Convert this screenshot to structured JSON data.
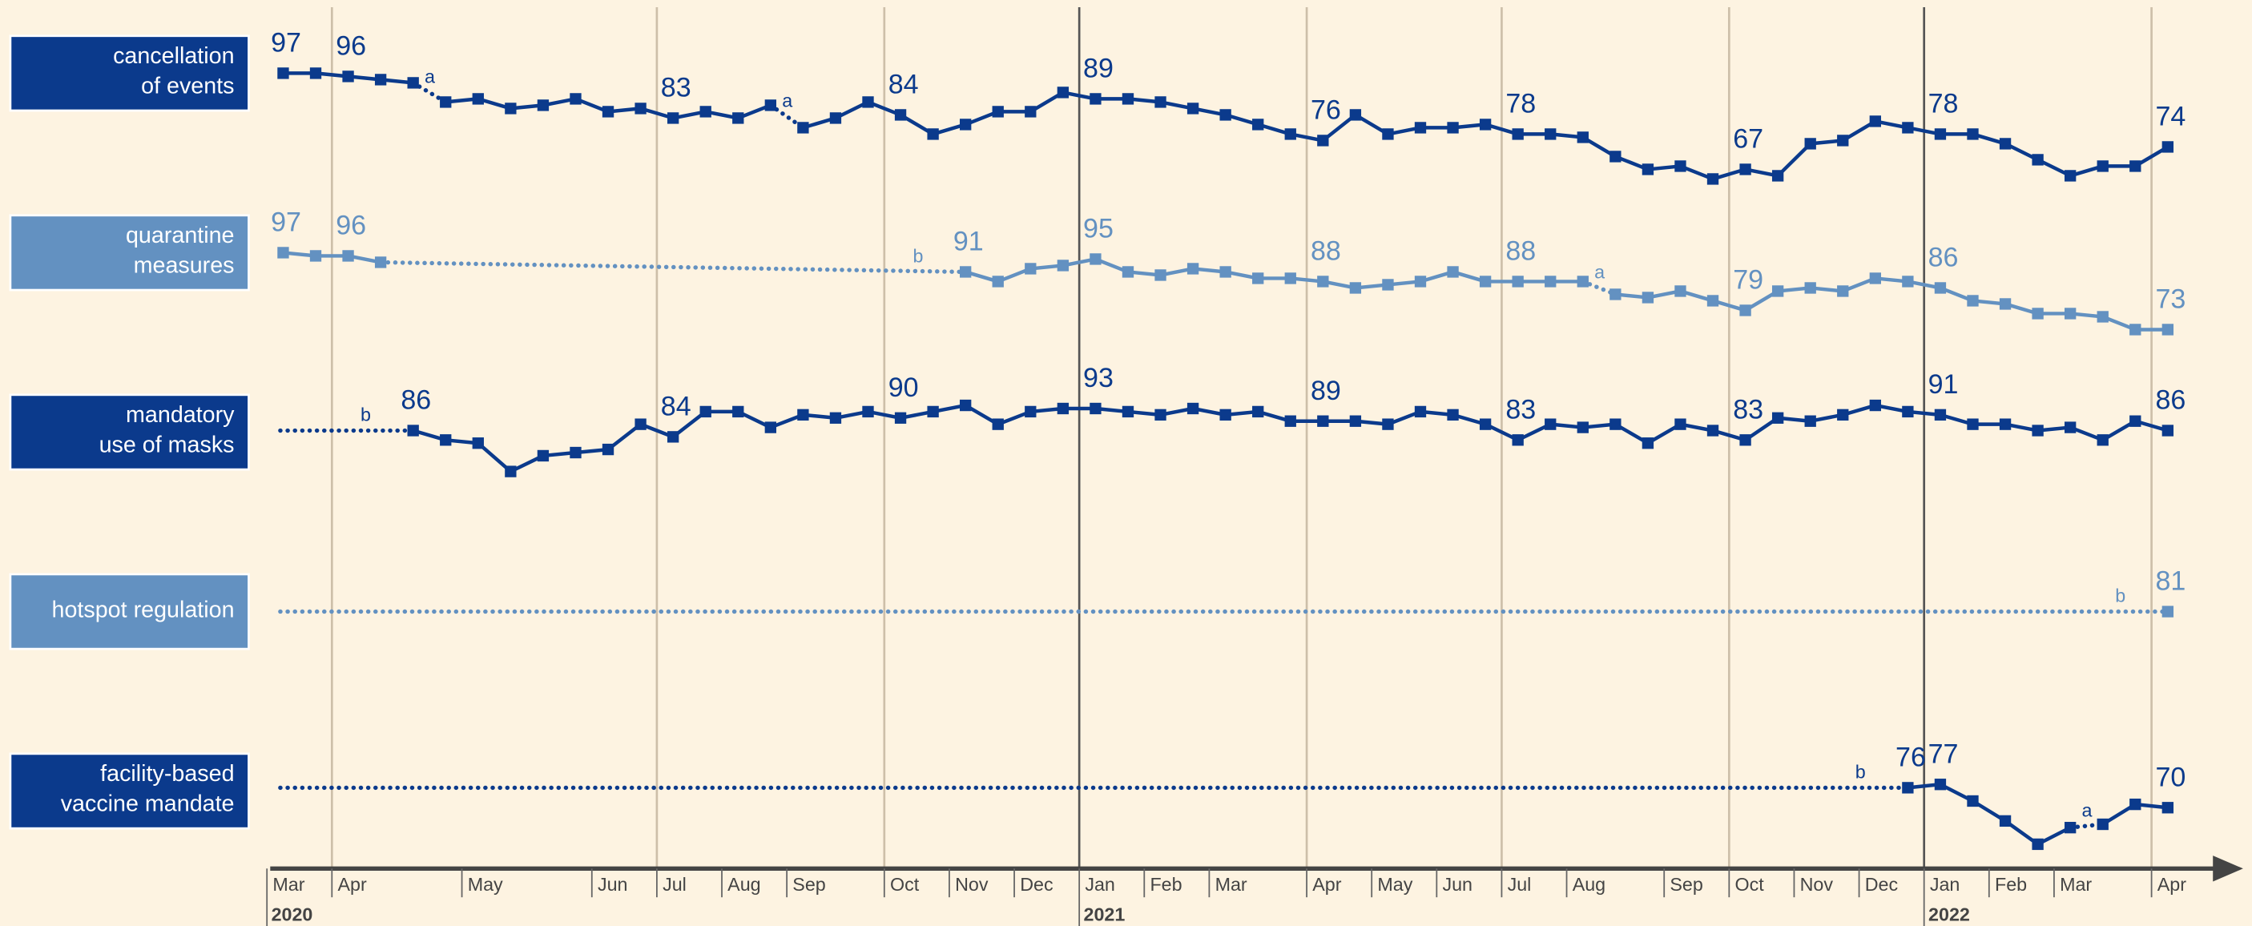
{
  "chart_data": {
    "type": "line",
    "categories": [
      "Mar",
      null,
      "Apr",
      null,
      null,
      null,
      "May",
      null,
      null,
      null,
      "Jun",
      null,
      "Jul",
      null,
      "Aug",
      null,
      "Sep",
      null,
      null,
      "Oct",
      null,
      "Nov",
      null,
      "Dec",
      null,
      "Jan",
      null,
      "Feb",
      null,
      "Mar",
      null,
      null,
      "Apr",
      null,
      "May",
      null,
      "Jun",
      null,
      "Jul",
      null,
      "Aug",
      null,
      null,
      "Sep",
      null,
      "Oct",
      null,
      "Nov",
      null,
      "Dec",
      null,
      "Jan",
      null,
      "Feb",
      null,
      "Mar",
      null,
      null,
      "Apr"
    ],
    "years": [
      "2020",
      null,
      null,
      null,
      null,
      null,
      null,
      null,
      null,
      null,
      null,
      null,
      null,
      null,
      null,
      null,
      null,
      null,
      null,
      null,
      null,
      null,
      null,
      null,
      null,
      "2021",
      null,
      null,
      null,
      null,
      null,
      null,
      null,
      null,
      null,
      null,
      null,
      null,
      null,
      null,
      null,
      null,
      null,
      null,
      null,
      null,
      null,
      null,
      null,
      null,
      null,
      "2022",
      null,
      null,
      null,
      null,
      null,
      null,
      null
    ],
    "series": [
      {
        "name": "cancellation\nof events",
        "color": "#0b3a8c",
        "ylim": [
          69,
          125
        ],
        "values": [
          97,
          97,
          96,
          95,
          94,
          88,
          89,
          86,
          87,
          89,
          85,
          86,
          83,
          85,
          83,
          87,
          80,
          83,
          88,
          84,
          78,
          81,
          85,
          85,
          91,
          89,
          89,
          88,
          86,
          84,
          81,
          78,
          76,
          84,
          78,
          80,
          80,
          81,
          78,
          78,
          77,
          71,
          67,
          68,
          64,
          67,
          65,
          75,
          76,
          82,
          80,
          78,
          78,
          75,
          70,
          65,
          68,
          68,
          74
        ],
        "value_labels": [
          97,
          null,
          96,
          null,
          null,
          null,
          null,
          null,
          null,
          null,
          null,
          null,
          83,
          null,
          null,
          null,
          null,
          null,
          null,
          84,
          null,
          null,
          null,
          null,
          null,
          89,
          null,
          null,
          null,
          null,
          null,
          null,
          76,
          null,
          null,
          null,
          null,
          null,
          78,
          null,
          null,
          null,
          null,
          null,
          null,
          67,
          null,
          null,
          null,
          null,
          null,
          78,
          null,
          null,
          null,
          null,
          null,
          null,
          74
        ],
        "notes": [
          null,
          null,
          null,
          null,
          null,
          "a",
          null,
          null,
          null,
          null,
          null,
          null,
          null,
          null,
          null,
          null,
          "a",
          null,
          null,
          null,
          null,
          null,
          null,
          null,
          null,
          null,
          null,
          null,
          null,
          null,
          null,
          null,
          null,
          null,
          null,
          null,
          null,
          null,
          null,
          null,
          null,
          null,
          null,
          null,
          null,
          null,
          null,
          null,
          null,
          null,
          null,
          null,
          null,
          null,
          null,
          null,
          null,
          null,
          null
        ]
      },
      {
        "name": "quarantine\nmeasures",
        "color": "#6391c1",
        "ylim": [
          69,
          125
        ],
        "values": [
          97,
          96,
          96,
          94,
          null,
          null,
          null,
          null,
          null,
          null,
          null,
          null,
          null,
          null,
          null,
          null,
          null,
          null,
          null,
          null,
          null,
          91,
          88,
          92,
          93,
          95,
          91,
          90,
          92,
          91,
          89,
          89,
          88,
          86,
          87,
          88,
          91,
          88,
          88,
          88,
          88,
          84,
          83,
          85,
          82,
          79,
          85,
          86,
          85,
          89,
          88,
          86,
          82,
          81,
          78,
          78,
          77,
          73,
          73
        ],
        "value_labels": [
          97,
          null,
          96,
          null,
          null,
          null,
          null,
          null,
          null,
          null,
          null,
          null,
          null,
          null,
          null,
          null,
          null,
          null,
          null,
          null,
          null,
          91,
          null,
          null,
          null,
          95,
          null,
          null,
          null,
          null,
          null,
          null,
          88,
          null,
          null,
          null,
          null,
          null,
          88,
          null,
          null,
          null,
          null,
          null,
          null,
          79,
          null,
          null,
          null,
          null,
          null,
          86,
          null,
          null,
          null,
          null,
          null,
          null,
          73
        ],
        "notes": [
          null,
          null,
          null,
          null,
          null,
          null,
          null,
          null,
          null,
          null,
          null,
          null,
          null,
          null,
          null,
          null,
          null,
          null,
          null,
          null,
          null,
          "b",
          null,
          null,
          null,
          null,
          null,
          null,
          null,
          null,
          null,
          null,
          null,
          null,
          null,
          null,
          null,
          null,
          null,
          null,
          null,
          "a",
          null,
          null,
          null,
          null,
          null,
          null,
          null,
          null,
          null,
          null,
          null,
          null,
          null,
          null,
          null,
          null,
          null
        ]
      },
      {
        "name": "mandatory\nuse of masks",
        "color": "#0b3a8c",
        "ylim": [
          57,
          114
        ],
        "values": [
          null,
          null,
          null,
          null,
          86,
          83,
          82,
          73,
          78,
          79,
          80,
          88,
          84,
          92,
          92,
          87,
          91,
          90,
          92,
          90,
          92,
          94,
          88,
          92,
          93,
          93,
          92,
          91,
          93,
          91,
          92,
          89,
          89,
          89,
          88,
          92,
          91,
          88,
          83,
          88,
          87,
          88,
          82,
          88,
          86,
          83,
          90,
          89,
          91,
          94,
          92,
          91,
          88,
          88,
          86,
          87,
          83,
          89,
          86
        ],
        "value_labels": [
          null,
          null,
          null,
          null,
          86,
          null,
          null,
          null,
          null,
          null,
          null,
          null,
          84,
          null,
          null,
          null,
          null,
          null,
          null,
          90,
          null,
          null,
          null,
          null,
          null,
          93,
          null,
          null,
          null,
          null,
          null,
          null,
          89,
          null,
          null,
          null,
          null,
          null,
          83,
          null,
          null,
          null,
          null,
          null,
          null,
          83,
          null,
          null,
          null,
          null,
          null,
          91,
          null,
          null,
          null,
          null,
          null,
          null,
          86
        ],
        "notes": [
          null,
          null,
          null,
          null,
          "b",
          null,
          null,
          null,
          null,
          null,
          null,
          null,
          null,
          null,
          null,
          null,
          null,
          null,
          null,
          null,
          null,
          null,
          null,
          null,
          null,
          null,
          null,
          null,
          null,
          null,
          null,
          null,
          null,
          null,
          null,
          null,
          null,
          null,
          null,
          null,
          null,
          null,
          null,
          null,
          null,
          null,
          null,
          null,
          null,
          null,
          null,
          null,
          null,
          null,
          null,
          null,
          null,
          null,
          null
        ]
      },
      {
        "name": "hotspot regulation",
        "color": "#6391c1",
        "ylim": [
          53,
          109
        ],
        "values": [
          null,
          null,
          null,
          null,
          null,
          null,
          null,
          null,
          null,
          null,
          null,
          null,
          null,
          null,
          null,
          null,
          null,
          null,
          null,
          null,
          null,
          null,
          null,
          null,
          null,
          null,
          null,
          null,
          null,
          null,
          null,
          null,
          null,
          null,
          null,
          null,
          null,
          null,
          null,
          null,
          null,
          null,
          null,
          null,
          null,
          null,
          null,
          null,
          null,
          null,
          null,
          null,
          null,
          null,
          null,
          null,
          null,
          null,
          81
        ],
        "value_labels": [
          null,
          null,
          null,
          null,
          null,
          null,
          null,
          null,
          null,
          null,
          null,
          null,
          null,
          null,
          null,
          null,
          null,
          null,
          null,
          null,
          null,
          null,
          null,
          null,
          null,
          null,
          null,
          null,
          null,
          null,
          null,
          null,
          null,
          null,
          null,
          null,
          null,
          null,
          null,
          null,
          null,
          null,
          null,
          null,
          null,
          null,
          null,
          null,
          null,
          null,
          null,
          null,
          null,
          null,
          null,
          null,
          null,
          null,
          81
        ],
        "notes": [
          null,
          null,
          null,
          null,
          null,
          null,
          null,
          null,
          null,
          null,
          null,
          null,
          null,
          null,
          null,
          null,
          null,
          null,
          null,
          null,
          null,
          null,
          null,
          null,
          null,
          null,
          null,
          null,
          null,
          null,
          null,
          null,
          null,
          null,
          null,
          null,
          null,
          null,
          null,
          null,
          null,
          null,
          null,
          null,
          null,
          null,
          null,
          null,
          null,
          null,
          null,
          null,
          null,
          null,
          null,
          null,
          null,
          null,
          "b"
        ]
      },
      {
        "name": "facility-based\nvaccine mandate",
        "color": "#0b3a8c",
        "ylim": [
          48,
          102
        ],
        "values": [
          null,
          null,
          null,
          null,
          null,
          null,
          null,
          null,
          null,
          null,
          null,
          null,
          null,
          null,
          null,
          null,
          null,
          null,
          null,
          null,
          null,
          null,
          null,
          null,
          null,
          null,
          null,
          null,
          null,
          null,
          null,
          null,
          null,
          null,
          null,
          null,
          null,
          null,
          null,
          null,
          null,
          null,
          null,
          null,
          null,
          null,
          null,
          null,
          null,
          null,
          76,
          77,
          72,
          66,
          59,
          64,
          65,
          71,
          70
        ],
        "value_labels": [
          null,
          null,
          null,
          null,
          null,
          null,
          null,
          null,
          null,
          null,
          null,
          null,
          null,
          null,
          null,
          null,
          null,
          null,
          null,
          null,
          null,
          null,
          null,
          null,
          null,
          null,
          null,
          null,
          null,
          null,
          null,
          null,
          null,
          null,
          null,
          null,
          null,
          null,
          null,
          null,
          null,
          null,
          null,
          null,
          null,
          null,
          null,
          null,
          null,
          null,
          76,
          77,
          null,
          null,
          null,
          null,
          null,
          null,
          70
        ],
        "notes": [
          null,
          null,
          null,
          null,
          null,
          null,
          null,
          null,
          null,
          null,
          null,
          null,
          null,
          null,
          null,
          null,
          null,
          null,
          null,
          null,
          null,
          null,
          null,
          null,
          null,
          null,
          null,
          null,
          null,
          null,
          null,
          null,
          null,
          null,
          null,
          null,
          null,
          null,
          null,
          null,
          null,
          null,
          null,
          null,
          null,
          null,
          null,
          null,
          null,
          null,
          "b",
          null,
          null,
          null,
          null,
          null,
          "a",
          null,
          null
        ]
      }
    ]
  }
}
